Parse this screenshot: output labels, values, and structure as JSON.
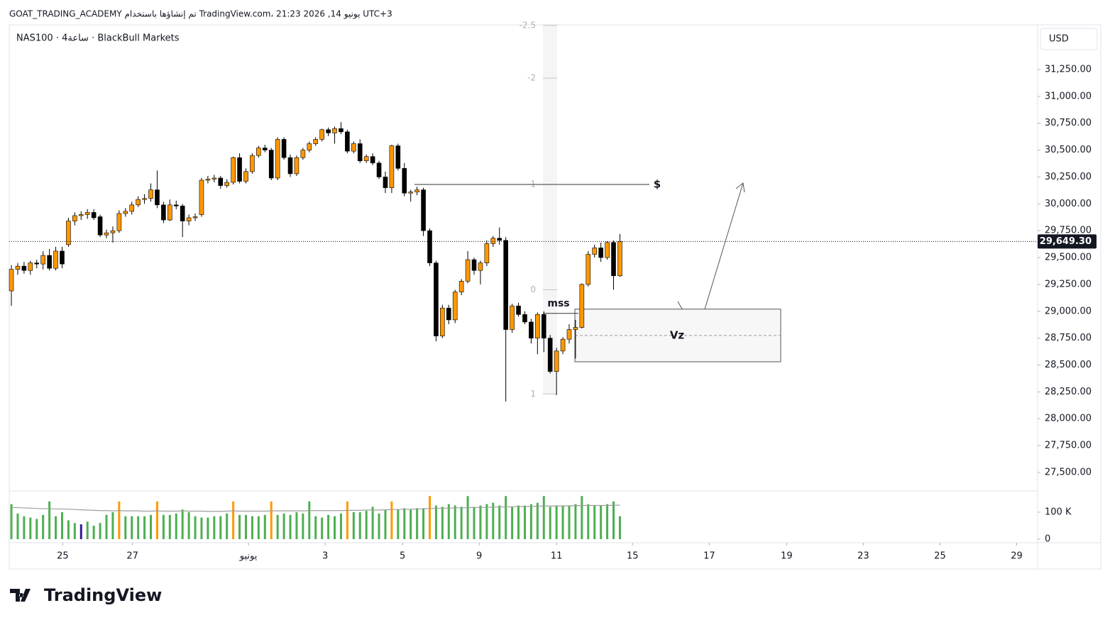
{
  "header": {
    "caption": "GOAT_TRADING_ACADEMY تم إنشاؤها باستخدام TradingView.com، 21:23 2026 ,14 يونيو UTC+3",
    "symbol": "NAS100 · 4ساعة · BlackBull Markets",
    "currency": "USD"
  },
  "chart_data": {
    "type": "candlestick",
    "open": [
      29190,
      29390,
      29420,
      29380,
      29450,
      29440,
      29520,
      29400,
      29560,
      29620,
      29840,
      29890,
      29900,
      29920,
      29880,
      29710,
      29730,
      29750,
      29910,
      29930,
      29990,
      30040,
      30050,
      30130,
      29990,
      29850,
      29990,
      29980,
      29840,
      29870,
      29900,
      30220,
      30230,
      30240,
      30170,
      30200,
      30430,
      30210,
      30300,
      30450,
      30520,
      30500,
      30240,
      30600,
      30430,
      30280,
      30430,
      30500,
      30560,
      30600,
      30690,
      30660,
      30700,
      30670,
      30490,
      30560,
      30400,
      30440,
      30380,
      30250,
      30150,
      30540,
      30330,
      30100,
      30110,
      30130,
      29750,
      29450,
      28770,
      29030,
      28920,
      29180,
      29280,
      29480,
      29380,
      29450,
      29630,
      29680,
      29660,
      28830,
      29050,
      28970,
      28900,
      28750,
      28970,
      28750,
      28440,
      28630,
      28740,
      28830,
      28850,
      29250,
      29530,
      29590,
      29500,
      29640,
      29330
    ],
    "high": [
      29430,
      29450,
      29460,
      29470,
      29480,
      29560,
      29580,
      29600,
      29600,
      29870,
      29920,
      29930,
      29950,
      29950,
      29900,
      29760,
      29790,
      29940,
      29960,
      30020,
      30070,
      30090,
      30190,
      30310,
      30020,
      30040,
      30030,
      30000,
      29900,
      29910,
      30240,
      30260,
      30270,
      30260,
      30230,
      30440,
      30470,
      30330,
      30470,
      30540,
      30550,
      30520,
      30620,
      30620,
      30460,
      30450,
      30520,
      30580,
      30620,
      30700,
      30710,
      30720,
      30760,
      30690,
      30580,
      30600,
      30460,
      30470,
      30400,
      30300,
      30550,
      30560,
      30380,
      30130,
      30160,
      30150,
      29770,
      29470,
      29060,
      29060,
      29200,
      29300,
      29560,
      29500,
      29470,
      29660,
      29700,
      29780,
      29690,
      29070,
      29080,
      29000,
      28930,
      28990,
      29000,
      28780,
      28660,
      28760,
      28880,
      28920,
      29260,
      29560,
      29620,
      29640,
      29650,
      29660,
      29720
    ],
    "low": [
      29050,
      29340,
      29350,
      29340,
      29400,
      29390,
      29380,
      29380,
      29400,
      29600,
      29800,
      29850,
      29860,
      29850,
      29690,
      29680,
      29640,
      29730,
      29880,
      29900,
      29970,
      30000,
      30020,
      29960,
      29820,
      29840,
      29950,
      29690,
      29800,
      29840,
      29880,
      30190,
      30200,
      30140,
      30150,
      30180,
      30190,
      30190,
      30280,
      30430,
      30480,
      30220,
      30220,
      30410,
      30250,
      30260,
      30410,
      30480,
      30540,
      30580,
      30630,
      30560,
      30650,
      30470,
      30470,
      30380,
      30380,
      30360,
      30230,
      30100,
      30100,
      30310,
      30070,
      30020,
      30080,
      29700,
      29420,
      28720,
      28750,
      28880,
      28890,
      29150,
      29260,
      29340,
      29250,
      29420,
      29600,
      29620,
      28160,
      28800,
      28950,
      28880,
      28700,
      28600,
      28620,
      28420,
      28220,
      28600,
      28700,
      28560,
      28840,
      29230,
      29500,
      29460,
      29480,
      29200,
      29320
    ],
    "close": [
      29390,
      29420,
      29380,
      29450,
      29440,
      29520,
      29400,
      29560,
      29440,
      29840,
      29890,
      29900,
      29920,
      29870,
      29710,
      29730,
      29750,
      29910,
      29930,
      29990,
      30040,
      30050,
      30130,
      29990,
      29850,
      29990,
      29980,
      29840,
      29870,
      29880,
      30220,
      30230,
      30240,
      30170,
      30200,
      30430,
      30210,
      30300,
      30450,
      30520,
      30500,
      30240,
      30600,
      30430,
      30280,
      30430,
      30500,
      30560,
      30600,
      30690,
      30660,
      30700,
      30670,
      30490,
      30560,
      30400,
      30440,
      30380,
      30250,
      30150,
      30540,
      30330,
      30100,
      30110,
      30130,
      29750,
      29450,
      28770,
      29030,
      28920,
      29180,
      29280,
      29480,
      29380,
      29450,
      29630,
      29680,
      29660,
      28830,
      29050,
      28970,
      28900,
      28750,
      28970,
      28750,
      28440,
      28630,
      28740,
      28830,
      28850,
      29250,
      29530,
      29590,
      29500,
      29640,
      29330,
      29650
    ],
    "up_color": "#ff9800",
    "down_color": "#000000",
    "ylim": [
      27328,
      31666
    ],
    "yticks": [
      {
        "value": 27500,
        "label": "27,500.00"
      },
      {
        "value": 27750,
        "label": "27,750.00"
      },
      {
        "value": 28000,
        "label": "28,000.00"
      },
      {
        "value": 28250,
        "label": "28,250.00"
      },
      {
        "value": 28500,
        "label": "28,500.00"
      },
      {
        "value": 28750,
        "label": "28,750.00"
      },
      {
        "value": 29000,
        "label": "29,000.00"
      },
      {
        "value": 29250,
        "label": "29,250.00"
      },
      {
        "value": 29500,
        "label": "29,500.00"
      },
      {
        "value": 29750,
        "label": "29,750.00"
      },
      {
        "value": 30000,
        "label": "30,000.00"
      },
      {
        "value": 30250,
        "label": "30,250.00"
      },
      {
        "value": 30500,
        "label": "30,500.00"
      },
      {
        "value": 30750,
        "label": "30,750.00"
      },
      {
        "value": 31000,
        "label": "31,000.00"
      },
      {
        "value": 31250,
        "label": "31,250.00"
      }
    ],
    "xlim": [
      -0.34,
      161.9
    ],
    "xticks": [
      {
        "value": 8.1,
        "label": "25"
      },
      {
        "value": 19.1,
        "label": "27"
      },
      {
        "value": 37.4,
        "label": "يونيو"
      },
      {
        "value": 49.5,
        "label": "3"
      },
      {
        "value": 61.7,
        "label": "5"
      },
      {
        "value": 73.8,
        "label": "9"
      },
      {
        "value": 86,
        "label": "11"
      },
      {
        "value": 98,
        "label": "15"
      },
      {
        "value": 110.1,
        "label": "17"
      },
      {
        "value": 122.3,
        "label": "19"
      },
      {
        "value": 134.4,
        "label": "23"
      },
      {
        "value": 146.5,
        "label": "25"
      },
      {
        "value": 158.6,
        "label": "29"
      }
    ],
    "last_price": {
      "value": 29649.3,
      "label": "29,649.30"
    },
    "volume": {
      "values": [
        130000,
        95000,
        85000,
        80000,
        75000,
        90000,
        140000,
        85000,
        100000,
        70000,
        60000,
        55000,
        65000,
        50000,
        60000,
        90000,
        100000,
        140000,
        85000,
        85000,
        85000,
        85000,
        90000,
        140000,
        90000,
        90000,
        95000,
        110000,
        100000,
        85000,
        80000,
        80000,
        85000,
        85000,
        95000,
        140000,
        90000,
        90000,
        85000,
        85000,
        90000,
        140000,
        90000,
        95000,
        90000,
        100000,
        95000,
        140000,
        85000,
        80000,
        90000,
        85000,
        95000,
        140000,
        100000,
        100000,
        105000,
        120000,
        95000,
        110000,
        140000,
        110000,
        115000,
        110000,
        115000,
        115000,
        160000,
        125000,
        120000,
        130000,
        125000,
        120000,
        160000,
        120000,
        125000,
        130000,
        135000,
        125000,
        160000,
        120000,
        125000,
        125000,
        130000,
        135000,
        160000,
        120000,
        125000,
        125000,
        125000,
        130000,
        160000,
        130000,
        125000,
        125000,
        130000,
        140000,
        85000
      ],
      "colors": [
        "#4caf50",
        "#4caf50",
        "#4caf50",
        "#4caf50",
        "#4caf50",
        "#4caf50",
        "#4caf50",
        "#4caf50",
        "#4caf50",
        "#4caf50",
        "#4caf50",
        "#311b92",
        "#4caf50",
        "#4caf50",
        "#4caf50",
        "#4caf50",
        "#4caf50",
        "#ff9800",
        "#4caf50",
        "#4caf50",
        "#4caf50",
        "#4caf50",
        "#4caf50",
        "#ff9800",
        "#4caf50",
        "#4caf50",
        "#4caf50",
        "#4caf50",
        "#4caf50",
        "#4caf50",
        "#4caf50",
        "#4caf50",
        "#4caf50",
        "#4caf50",
        "#4caf50",
        "#ff9800",
        "#4caf50",
        "#4caf50",
        "#4caf50",
        "#4caf50",
        "#4caf50",
        "#ff9800",
        "#4caf50",
        "#4caf50",
        "#4caf50",
        "#4caf50",
        "#4caf50",
        "#4caf50",
        "#4caf50",
        "#4caf50",
        "#4caf50",
        "#4caf50",
        "#4caf50",
        "#ff9800",
        "#4caf50",
        "#4caf50",
        "#4caf50",
        "#4caf50",
        "#4caf50",
        "#4caf50",
        "#ff9800",
        "#4caf50",
        "#4caf50",
        "#4caf50",
        "#4caf50",
        "#4caf50",
        "#ff9800",
        "#4caf50",
        "#4caf50",
        "#4caf50",
        "#4caf50",
        "#4caf50",
        "#4caf50",
        "#4caf50",
        "#4caf50",
        "#4caf50",
        "#4caf50",
        "#4caf50",
        "#4caf50",
        "#4caf50",
        "#4caf50",
        "#4caf50",
        "#4caf50",
        "#4caf50",
        "#4caf50",
        "#4caf50",
        "#4caf50",
        "#4caf50",
        "#4caf50",
        "#4caf50",
        "#4caf50",
        "#4caf50",
        "#4caf50",
        "#4caf50",
        "#4caf50",
        "#4caf50",
        "#4caf50"
      ],
      "ma": [
        118000,
        117000,
        116000,
        115000,
        114000,
        113000,
        113000,
        112000,
        112000,
        111000,
        110000,
        109000,
        108000,
        107000,
        106000,
        106000,
        105000,
        106000,
        105000,
        105000,
        105000,
        104000,
        104000,
        105000,
        104000,
        104000,
        104000,
        105000,
        104000,
        104000,
        104000,
        103000,
        103000,
        103000,
        104000,
        105000,
        104000,
        104000,
        104000,
        104000,
        104000,
        105000,
        105000,
        105000,
        105000,
        105000,
        105000,
        106000,
        106000,
        106000,
        106000,
        106000,
        106000,
        107000,
        107000,
        107000,
        108000,
        108000,
        108000,
        109000,
        110000,
        110000,
        111000,
        111000,
        112000,
        112000,
        114000,
        114000,
        115000,
        115000,
        116000,
        116000,
        117000,
        117000,
        118000,
        118000,
        119000,
        119000,
        120000,
        120000,
        121000,
        121000,
        121000,
        122000,
        123000,
        123000,
        123000,
        123000,
        124000,
        124000,
        125000,
        125000,
        125000,
        125000,
        125000,
        126000,
        126000
      ],
      "ma_color": "#9e9e9e",
      "ylim": [
        0,
        179000
      ],
      "yticks": [
        0,
        {
          "value": 100000,
          "label": "100 K"
        }
      ]
    },
    "annotations": {
      "fib": [
        {
          "label": "-2.5",
          "price": 31660
        },
        {
          "label": "-2",
          "price": 31170
        },
        {
          "label": "1",
          "price": 30180
        },
        {
          "label": "0",
          "price": 29200
        },
        {
          "label": "1",
          "price": 28230
        }
      ],
      "liquidity": {
        "label": "$",
        "price": 30180
      },
      "mss": {
        "label": "mss",
        "price": 28980
      },
      "zone": {
        "label": "Vz",
        "top": 29020,
        "bottom": 28530
      }
    }
  },
  "footer": {
    "logo": "TradingView"
  }
}
